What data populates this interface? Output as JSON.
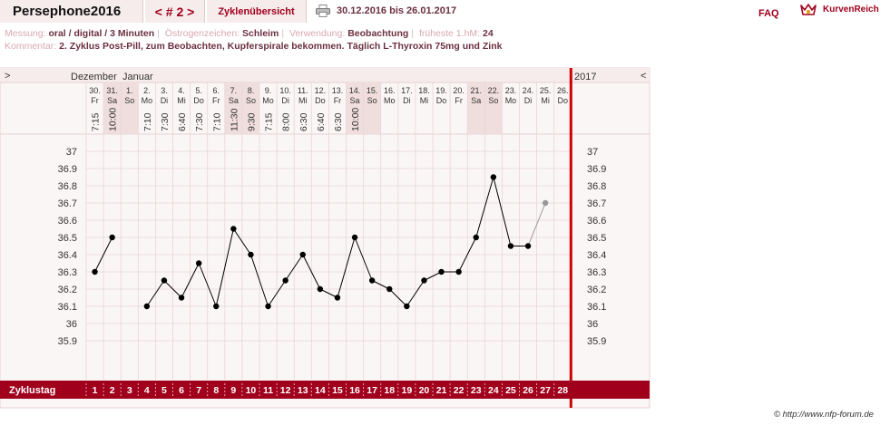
{
  "header": {
    "username": "Persephone2016",
    "cycle_nav": "< # 2 >",
    "overview_label": "Zyklenübersicht",
    "print_icon": "printer-icon",
    "date_range": "30.12.2016 bis 26.01.2017",
    "faq_label": "FAQ",
    "brand_icon": "kurvenreich-logo-icon",
    "brand_label": "KurvenReich"
  },
  "info": {
    "messung_label": "Messung:",
    "messung_value": "oral / digital / 3 Minuten",
    "oestrogen_label": "Östrogenzeichen:",
    "oestrogen_value": "Schleim",
    "verwendung_label": "Verwendung:",
    "verwendung_value": "Beobachtung",
    "fruehest_label": "früheste 1.hM:",
    "fruehest_value": "24",
    "kommentar_label": "Kommentar:",
    "kommentar_value": "2. Zyklus Post-Pill, zum Beobachten, Kupferspirale bekommen. Täglich L-Thyroxin 75mg und Zink"
  },
  "nav": {
    "left_arrow": ">",
    "right_arrow": "<",
    "year_label": "2017"
  },
  "colors": {
    "accent": "#a0001c",
    "cycle_end_line": "#cc0000",
    "weekend_bg": "#f0dede",
    "grid": "#e6d6d6",
    "curve": "#000000",
    "excluded": "#999999"
  },
  "chart_data": {
    "type": "line",
    "title": "",
    "xlabel": "Zyklustag",
    "ylabel": "",
    "ylim": [
      35.9,
      37.0
    ],
    "yticks": [
      "37",
      "36.9",
      "36.8",
      "36.7",
      "36.6",
      "36.5",
      "36.4",
      "36.3",
      "36.2",
      "36.1",
      "36",
      "35.9"
    ],
    "months": [
      "Dezember",
      "Januar"
    ],
    "days": [
      {
        "date": "30.",
        "wd": "Fr",
        "time": "7:15",
        "cd": "1",
        "temp": 36.3,
        "weekend": false
      },
      {
        "date": "31.",
        "wd": "Sa",
        "time": "10:00",
        "cd": "2",
        "temp": 36.5,
        "weekend": true
      },
      {
        "date": "1.",
        "wd": "So",
        "time": "",
        "cd": "3",
        "temp": null,
        "weekend": true
      },
      {
        "date": "2.",
        "wd": "Mo",
        "time": "7:10",
        "cd": "4",
        "temp": 36.1,
        "weekend": false
      },
      {
        "date": "3.",
        "wd": "Di",
        "time": "7:30",
        "cd": "5",
        "temp": 36.25,
        "weekend": false
      },
      {
        "date": "4.",
        "wd": "Mi",
        "time": "6:40",
        "cd": "6",
        "temp": 36.15,
        "weekend": false
      },
      {
        "date": "5.",
        "wd": "Do",
        "time": "7:30",
        "cd": "7",
        "temp": 36.35,
        "weekend": false
      },
      {
        "date": "6.",
        "wd": "Fr",
        "time": "7:10",
        "cd": "8",
        "temp": 36.1,
        "weekend": false
      },
      {
        "date": "7.",
        "wd": "Sa",
        "time": "11:30",
        "cd": "9",
        "temp": 36.55,
        "weekend": true
      },
      {
        "date": "8.",
        "wd": "So",
        "time": "9:30",
        "cd": "10",
        "temp": 36.4,
        "weekend": true
      },
      {
        "date": "9.",
        "wd": "Mo",
        "time": "7:15",
        "cd": "11",
        "temp": 36.1,
        "weekend": false
      },
      {
        "date": "10.",
        "wd": "Di",
        "time": "8:00",
        "cd": "12",
        "temp": 36.25,
        "weekend": false
      },
      {
        "date": "11.",
        "wd": "Mi",
        "time": "6:30",
        "cd": "13",
        "temp": 36.4,
        "weekend": false
      },
      {
        "date": "12.",
        "wd": "Do",
        "time": "6:40",
        "cd": "14",
        "temp": 36.2,
        "weekend": false
      },
      {
        "date": "13.",
        "wd": "Fr",
        "time": "6:30",
        "cd": "15",
        "temp": 36.15,
        "weekend": false
      },
      {
        "date": "14.",
        "wd": "Sa",
        "time": "10:00",
        "cd": "16",
        "temp": 36.5,
        "weekend": true
      },
      {
        "date": "15.",
        "wd": "So",
        "time": "",
        "cd": "17",
        "temp": 36.25,
        "weekend": true
      },
      {
        "date": "16.",
        "wd": "Mo",
        "time": "",
        "cd": "18",
        "temp": 36.2,
        "weekend": false
      },
      {
        "date": "17.",
        "wd": "Di",
        "time": "",
        "cd": "19",
        "temp": 36.1,
        "weekend": false
      },
      {
        "date": "18.",
        "wd": "Mi",
        "time": "",
        "cd": "20",
        "temp": 36.25,
        "weekend": false
      },
      {
        "date": "19.",
        "wd": "Do",
        "time": "",
        "cd": "21",
        "temp": 36.3,
        "weekend": false
      },
      {
        "date": "20.",
        "wd": "Fr",
        "time": "",
        "cd": "22",
        "temp": 36.3,
        "weekend": false
      },
      {
        "date": "21.",
        "wd": "Sa",
        "time": "",
        "cd": "23",
        "temp": 36.5,
        "weekend": true
      },
      {
        "date": "22.",
        "wd": "So",
        "time": "",
        "cd": "24",
        "temp": 36.85,
        "weekend": true
      },
      {
        "date": "23.",
        "wd": "Mo",
        "time": "",
        "cd": "25",
        "temp": 36.45,
        "weekend": false
      },
      {
        "date": "24.",
        "wd": "Di",
        "time": "",
        "cd": "26",
        "temp": 36.45,
        "weekend": false
      },
      {
        "date": "25.",
        "wd": "Mi",
        "time": "",
        "cd": "27",
        "temp": 36.7,
        "excluded": true,
        "weekend": false
      },
      {
        "date": "26.",
        "wd": "Do",
        "time": "",
        "cd": "28",
        "temp": null,
        "weekend": false
      }
    ]
  },
  "footer": {
    "credit": "© http://www.nfp-forum.de"
  }
}
